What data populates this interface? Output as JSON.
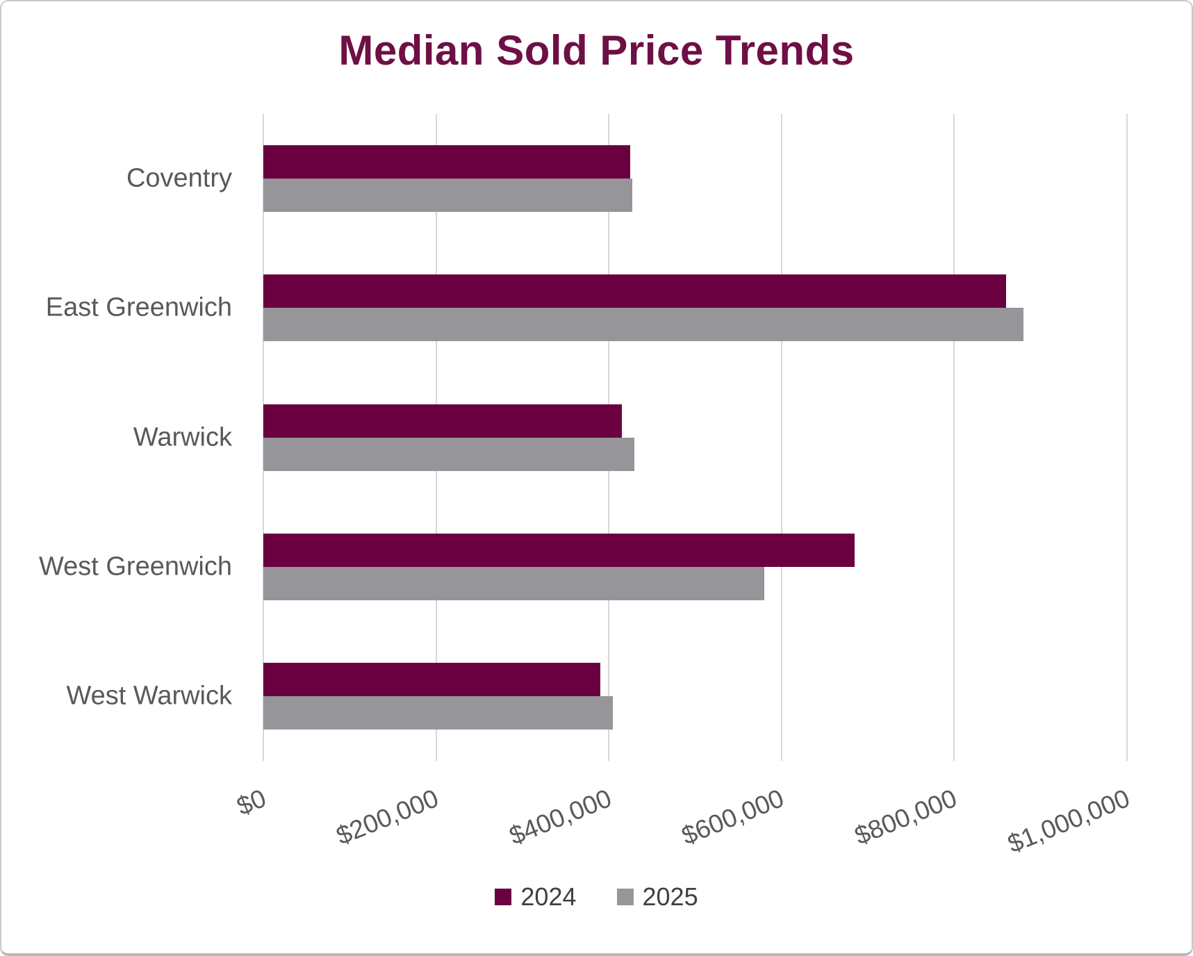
{
  "chart_data": {
    "type": "bar",
    "orientation": "horizontal",
    "title": "Median Sold Price Trends",
    "categories": [
      "Coventry",
      "East Greenwich",
      "Warwick",
      "West Greenwich",
      "West Warwick"
    ],
    "series": [
      {
        "name": "2024",
        "color": "#6A0040",
        "values": [
          425000,
          860000,
          415000,
          685000,
          390000
        ]
      },
      {
        "name": "2025",
        "color": "#95959A",
        "values": [
          427000,
          880000,
          430000,
          580000,
          405000
        ]
      }
    ],
    "xlabel": "",
    "ylabel": "",
    "xlim": [
      0,
      1000000
    ],
    "x_ticks": [
      0,
      200000,
      400000,
      600000,
      800000,
      1000000
    ],
    "x_tick_labels": [
      "$0",
      "$200,000",
      "$400,000",
      "$600,000",
      "$800,000",
      "$1,000,000"
    ],
    "grid": "vertical-gridlines-on",
    "legend_position": "bottom"
  },
  "colors": {
    "title": "#6E0F45",
    "axis_text": "#595959",
    "gridline": "#D8D8D8",
    "series_2024": "#6A0040",
    "series_2025": "#95959A",
    "legend_text": "#404040",
    "frame_border": "#C9C9C9",
    "background": "#FFFFFF"
  }
}
